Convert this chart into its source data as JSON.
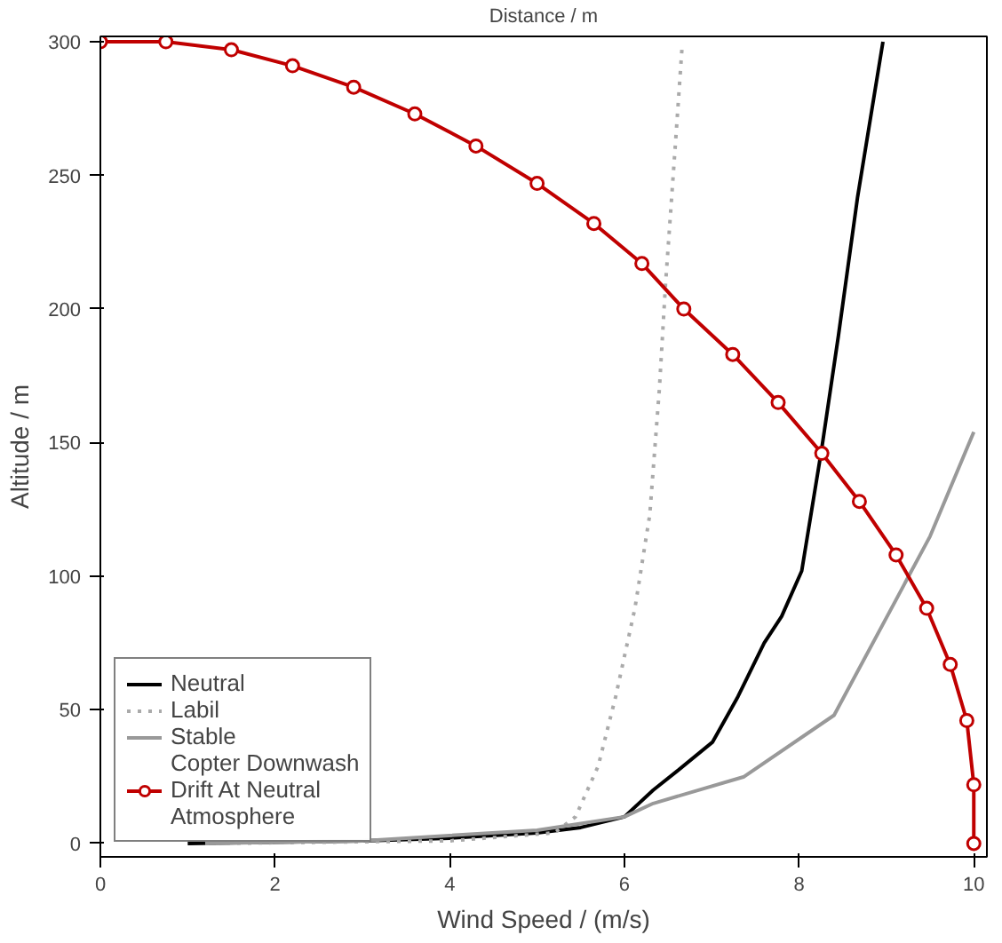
{
  "chart_data": {
    "type": "line",
    "xlabel": "Wind Speed / (m/s)",
    "ylabel": "Altitude / m",
    "x2label": "Distance / m",
    "xlim": [
      0,
      10.15
    ],
    "ylim": [
      -5,
      302
    ],
    "xticks": [
      0,
      2,
      4,
      6,
      8,
      10
    ],
    "yticks": [
      0,
      50,
      100,
      150,
      200,
      250,
      300
    ],
    "grid": false,
    "legend": "bottom left",
    "series": [
      {
        "name": "Neutral",
        "color": "#000000",
        "line_style": "solid",
        "marker": "none",
        "x": [
          1,
          3,
          4,
          5,
          5.5,
          6,
          6.33,
          6.6,
          7.01,
          7.3,
          7.6,
          7.8,
          8.03,
          8.26,
          8.45,
          8.67,
          8.96
        ],
        "values": [
          0,
          1,
          2,
          4,
          6,
          10,
          20,
          27,
          38,
          55,
          75,
          85,
          102,
          148,
          190,
          242,
          300
        ]
      },
      {
        "name": "Labil",
        "color": "#aaaaaa",
        "line_style": "dotted",
        "marker": "none",
        "x": [
          1.2,
          4,
          5.2,
          5.44,
          5.7,
          5.9,
          6.12,
          6.29,
          6.4,
          6.47,
          6.58,
          6.66
        ],
        "values": [
          0,
          1,
          4,
          10,
          29,
          55,
          88,
          123,
          170,
          209,
          260,
          298
        ]
      },
      {
        "name": "Stable",
        "color": "#999999",
        "line_style": "solid",
        "marker": "none",
        "x": [
          1.2,
          3,
          5,
          6,
          6.33,
          7.37,
          8.4,
          9.09,
          9.5,
          10
        ],
        "values": [
          0,
          1,
          5,
          10,
          15,
          25,
          48,
          90,
          115,
          154
        ]
      },
      {
        "name": "Copter Downwash Drift At Neutral Atmosphere",
        "color": "#c00000",
        "line_style": "solid",
        "marker": "circle",
        "x": [
          0,
          0.75,
          1.5,
          2.2,
          2.9,
          3.6,
          4.3,
          5.0,
          5.65,
          6.2,
          6.68,
          7.24,
          7.76,
          8.26,
          8.69,
          9.11,
          9.46,
          9.73,
          9.92,
          10,
          10
        ],
        "values": [
          300,
          300,
          297,
          291,
          283,
          273,
          261,
          247,
          232,
          217,
          200,
          183,
          165,
          146,
          128,
          108,
          88,
          67,
          46,
          22,
          0
        ]
      }
    ]
  }
}
